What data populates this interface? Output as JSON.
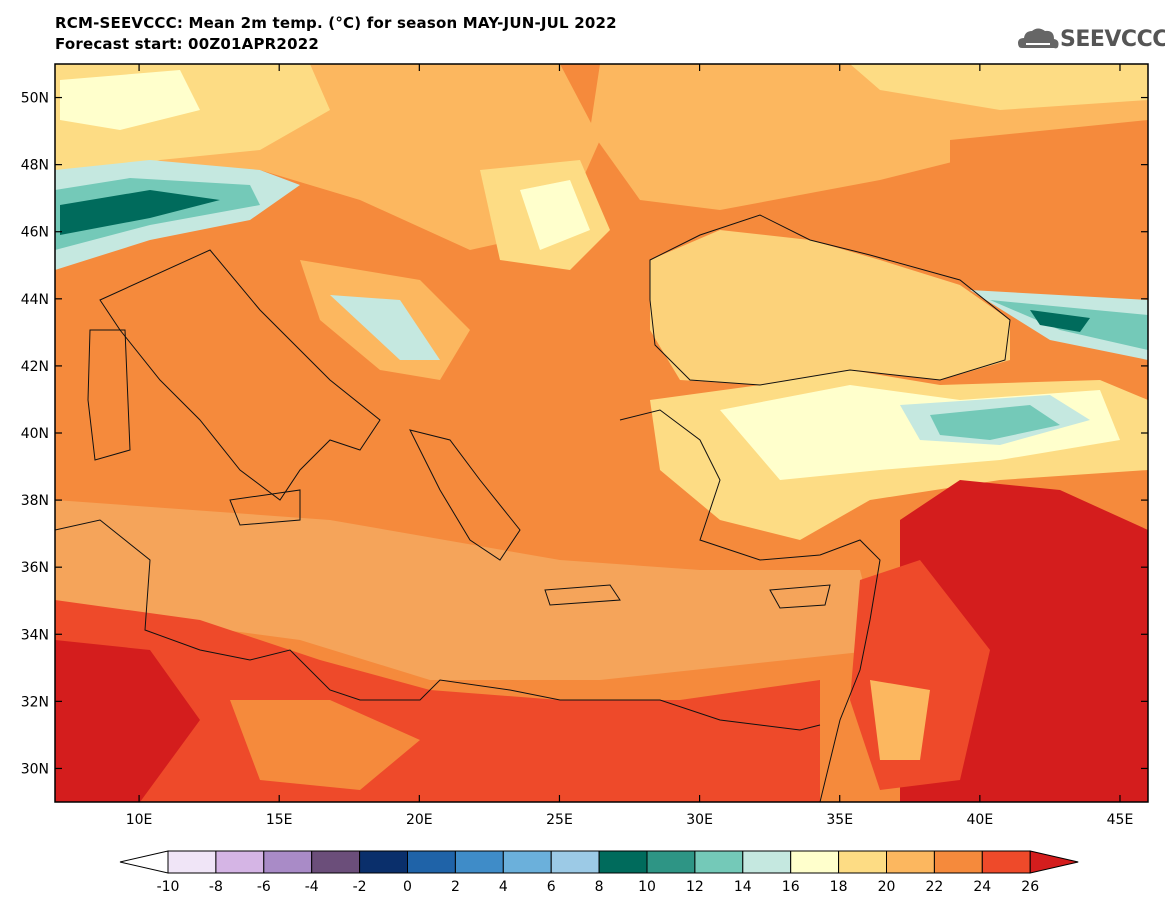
{
  "header": {
    "title_line1": "RCM-SEEVCCC: Mean 2m temp. (°C) for season MAY-JUN-JUL 2022",
    "title_line2": "Forecast start: 00Z01APR2022",
    "logo_text": "SEEVCCC",
    "logo_icon": "cloud-icon"
  },
  "map": {
    "lon_range": [
      7,
      46
    ],
    "lat_range": [
      29,
      51
    ],
    "lat_ticks": [
      "30N",
      "32N",
      "34N",
      "36N",
      "38N",
      "40N",
      "42N",
      "44N",
      "46N",
      "48N",
      "50N"
    ],
    "lat_tick_values": [
      30,
      32,
      34,
      36,
      38,
      40,
      42,
      44,
      46,
      48,
      50
    ],
    "lon_ticks": [
      "10E",
      "15E",
      "20E",
      "25E",
      "30E",
      "35E",
      "40E",
      "45E"
    ],
    "lon_tick_values": [
      10,
      15,
      20,
      25,
      30,
      35,
      40,
      45
    ],
    "background_color": "#f58a3c",
    "sea_color": "#f5a45a",
    "black_sea_color": "#fcd27a"
  },
  "colorbar": {
    "labels": [
      "-10",
      "-8",
      "-6",
      "-4",
      "-2",
      "0",
      "2",
      "4",
      "6",
      "8",
      "10",
      "12",
      "14",
      "16",
      "18",
      "20",
      "22",
      "24",
      "26"
    ],
    "colors": [
      "#f0e5f7",
      "#d5b5e5",
      "#a98bc7",
      "#6b4e7a",
      "#0a2f6b",
      "#1f63a8",
      "#3f8cc8",
      "#6bb0db",
      "#9ccae6",
      "#006b5c",
      "#2e9585",
      "#74c9b8",
      "#c5e8e0",
      "#ffffcc",
      "#fddc84",
      "#fcb75f",
      "#f58a3c",
      "#ee4a2a"
    ],
    "under_color": "#ffffff",
    "over_color": "#d41d1d"
  }
}
